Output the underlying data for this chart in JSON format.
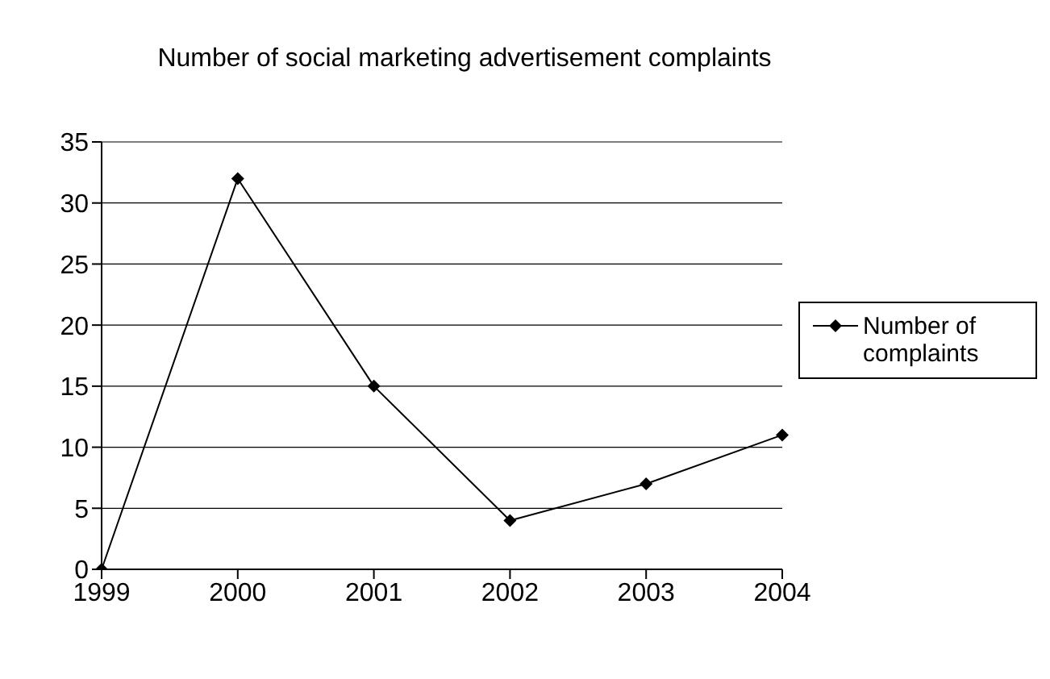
{
  "chart_data": {
    "type": "line",
    "title": "Number of social marketing advertisement complaints",
    "categories": [
      "1999",
      "2000",
      "2001",
      "2002",
      "2003",
      "2004"
    ],
    "series": [
      {
        "name": "Number of complaints",
        "color": "#000000",
        "values": [
          0,
          32,
          15,
          4,
          7,
          11
        ]
      }
    ],
    "ylim": [
      0,
      35
    ],
    "yticks": [
      0,
      5,
      10,
      15,
      20,
      25,
      30,
      35
    ],
    "grid": "y",
    "legend": "right",
    "marker": "diamond",
    "line_style": "solid"
  }
}
